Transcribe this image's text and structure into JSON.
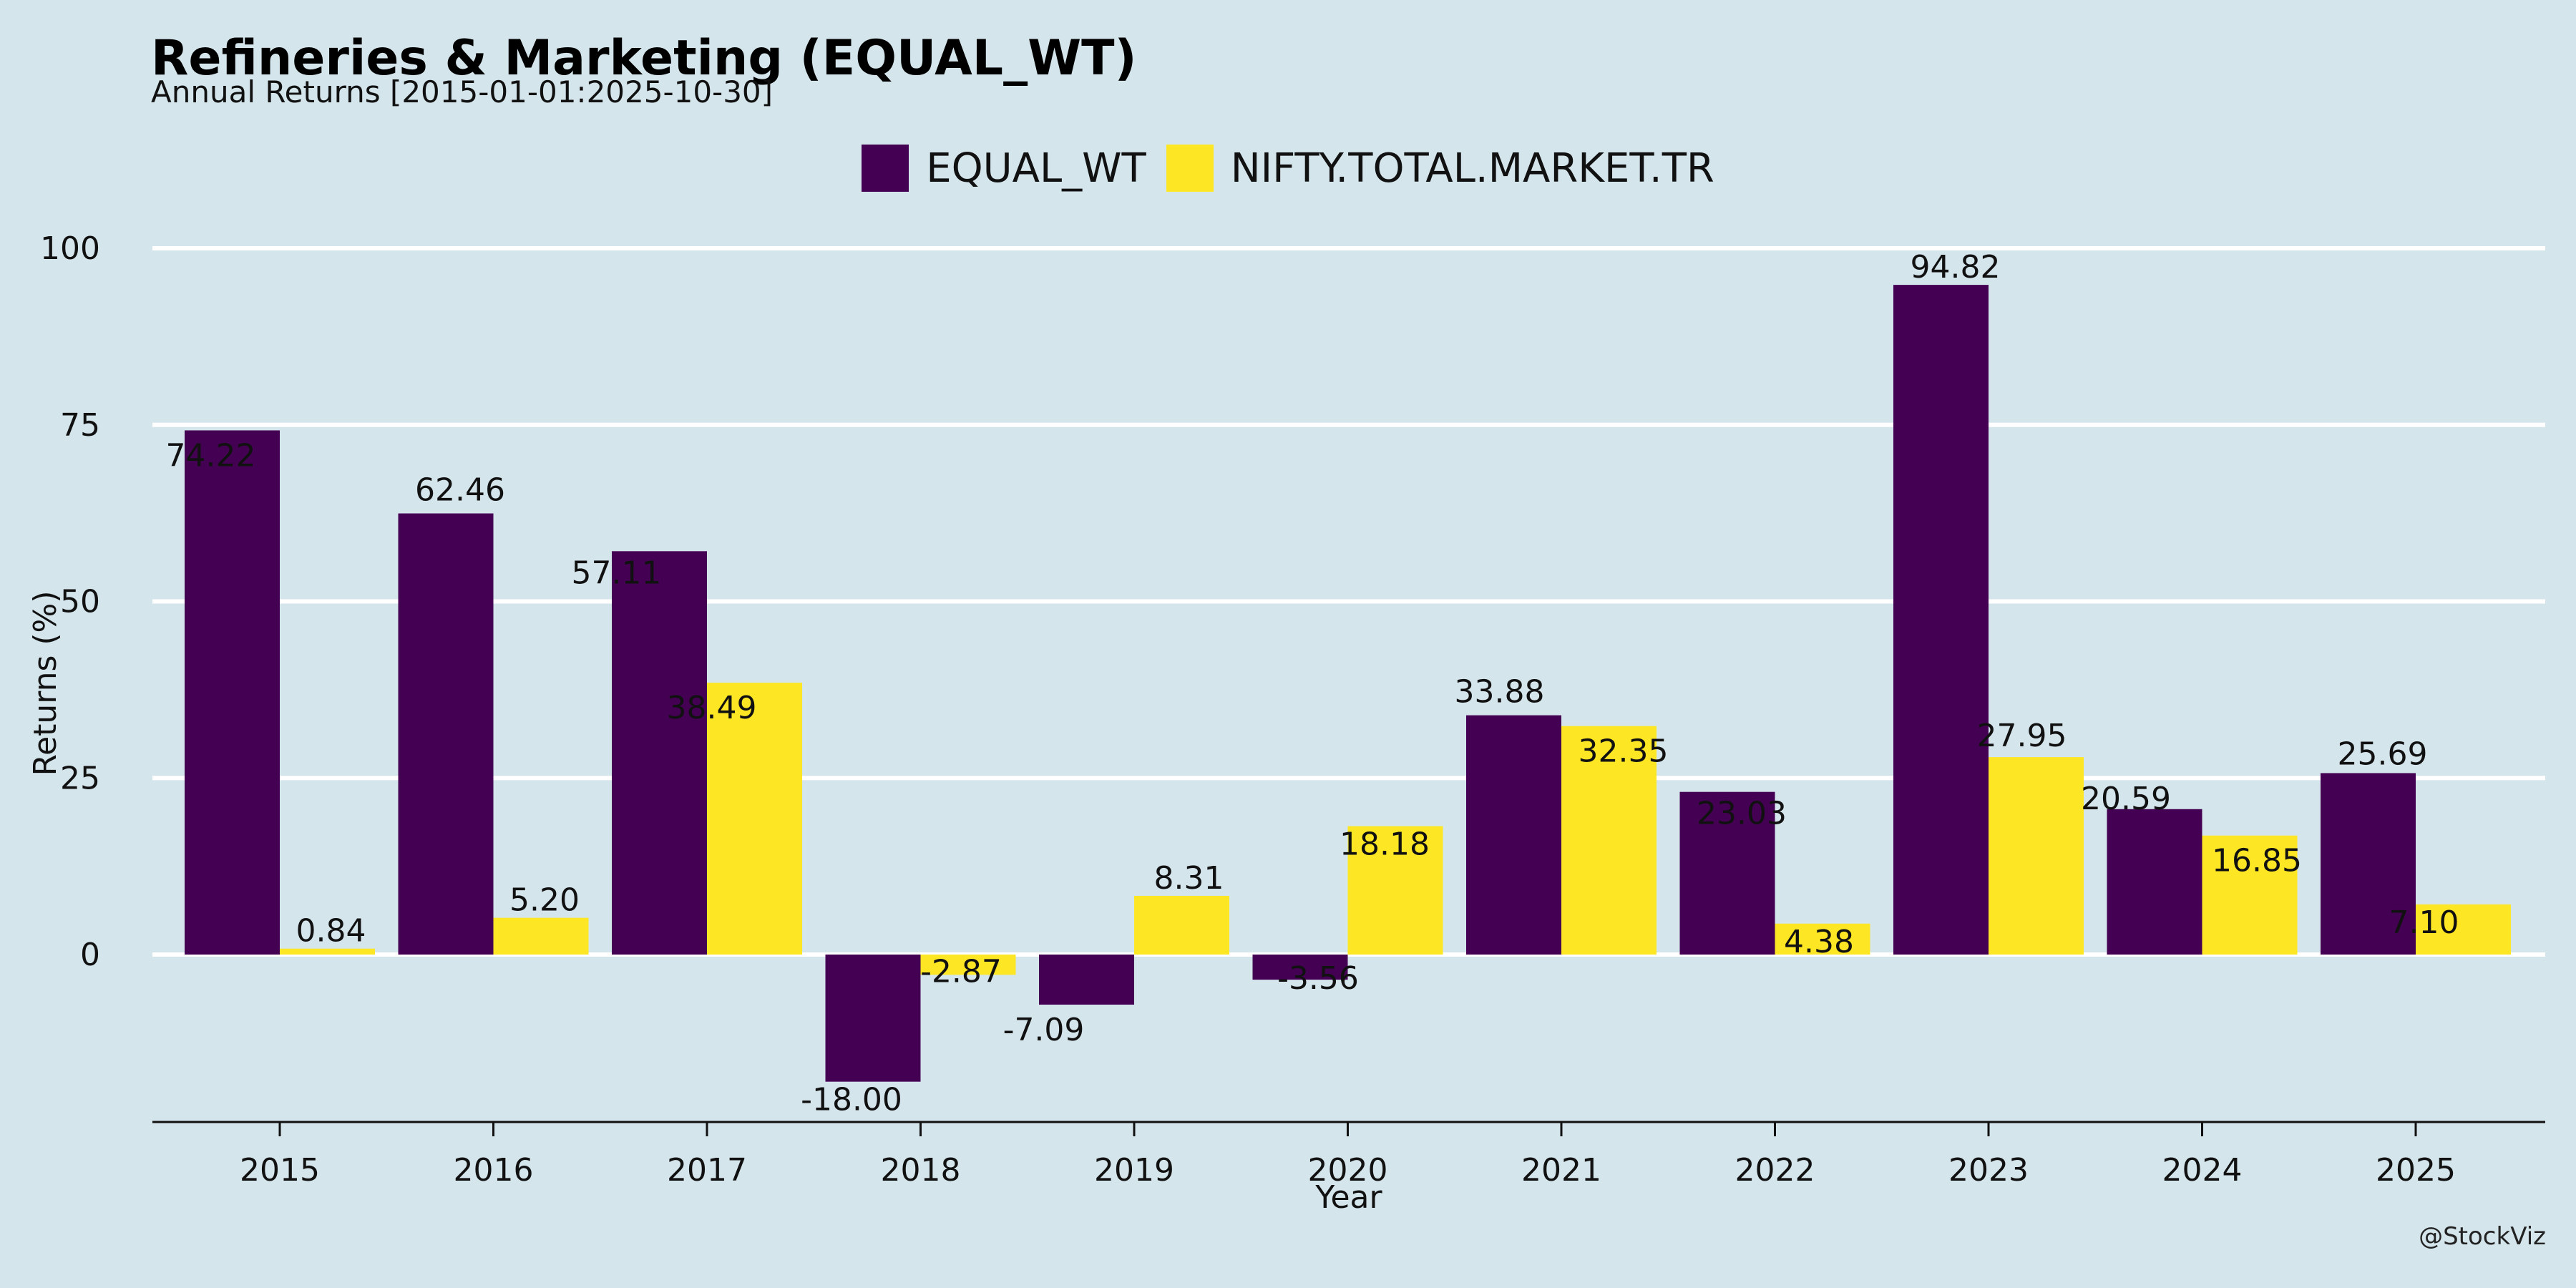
{
  "chart_data": {
    "type": "bar",
    "title": "Refineries & Marketing (EQUAL_WT)",
    "subtitle": "Annual Returns [2015-01-01:2025-10-30]",
    "xlabel": "Year",
    "ylabel": "Returns (%)",
    "watermark": "@StockViz",
    "legend_position": "top-center",
    "grid": "horizontal",
    "ylim": [
      -23.5,
      105
    ],
    "yticks": [
      0,
      25,
      50,
      75,
      100
    ],
    "ytick_labels": [
      "0",
      "25",
      "50",
      "75",
      "100"
    ],
    "categories": [
      "2015",
      "2016",
      "2017",
      "2018",
      "2019",
      "2020",
      "2021",
      "2022",
      "2023",
      "2024",
      "2025"
    ],
    "series": [
      {
        "name": "EQUAL_WT",
        "color": "#440154",
        "values": [
          74.22,
          62.46,
          57.11,
          -18.0,
          -7.09,
          -3.56,
          33.88,
          23.03,
          94.82,
          20.59,
          25.69
        ],
        "labels": [
          "74.22",
          "62.46",
          "57.11",
          "-18.00",
          "-7.09",
          "-3.56",
          "33.88",
          "23.03",
          "94.82",
          "20.59",
          "25.69"
        ]
      },
      {
        "name": "NIFTY.TOTAL.MARKET.TR",
        "color": "#fde725",
        "values": [
          0.84,
          5.2,
          38.49,
          -2.87,
          8.31,
          18.18,
          32.35,
          4.38,
          27.95,
          16.85,
          7.1
        ],
        "labels": [
          "0.84",
          "5.20",
          "38.49",
          "-2.87",
          "8.31",
          "18.18",
          "32.35",
          "4.38",
          "27.95",
          "16.85",
          "7.10"
        ]
      }
    ]
  }
}
